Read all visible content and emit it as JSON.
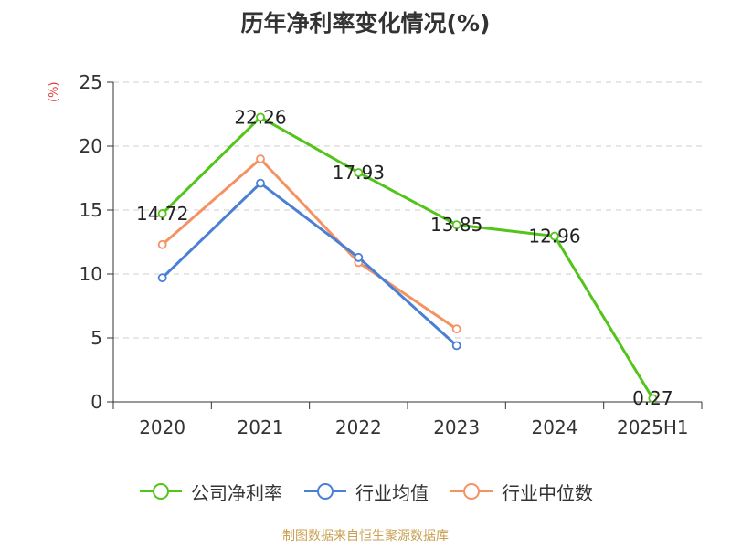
{
  "title": "历年净利率变化情况(%)",
  "source": "制图数据来自恒生聚源数据库",
  "colors": {
    "axis": "#333333",
    "grid": "#cccccc",
    "unit_label": "#e23b3b",
    "company": "#52c41a",
    "industry_avg": "#4a7fd6",
    "industry_median": "#f59262"
  },
  "chart_data": {
    "type": "line",
    "title": "历年净利率变化情况(%)",
    "ylabel": "(%)",
    "xlabel": "",
    "ylim": [
      0,
      25
    ],
    "yticks": [
      0,
      5,
      10,
      15,
      20,
      25
    ],
    "categories": [
      "2020",
      "2021",
      "2022",
      "2023",
      "2024",
      "2025H1"
    ],
    "grid": true,
    "legend_position": "bottom",
    "series": [
      {
        "name": "公司净利率",
        "color": "#52c41a",
        "values": [
          14.72,
          22.26,
          17.93,
          13.85,
          12.96,
          0.27
        ],
        "labels": [
          "14.72",
          "22.26",
          "17.93",
          "13.85",
          "12.96",
          "0.27"
        ]
      },
      {
        "name": "行业均值",
        "color": "#4a7fd6",
        "values": [
          9.7,
          17.1,
          11.3,
          4.4,
          null,
          null
        ]
      },
      {
        "name": "行业中位数",
        "color": "#f59262",
        "values": [
          12.3,
          19.0,
          10.9,
          5.7,
          null,
          null
        ]
      }
    ]
  }
}
